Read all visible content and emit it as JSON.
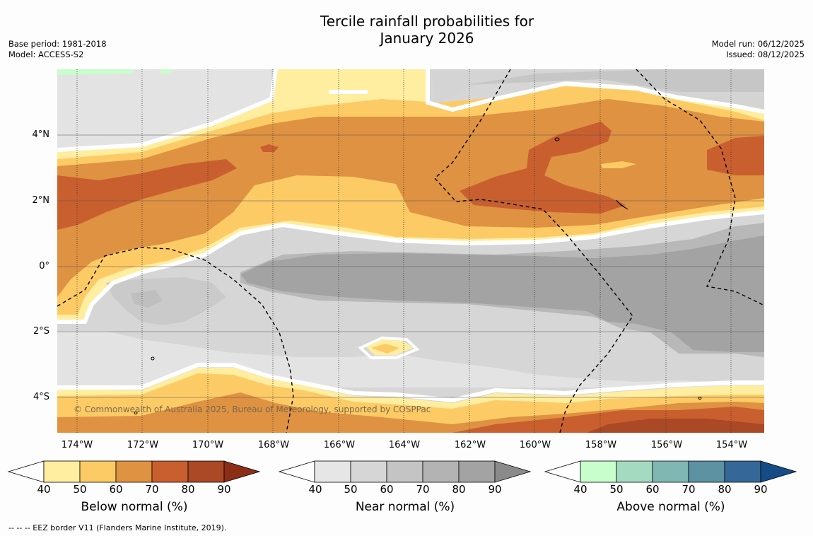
{
  "title_line1": "Tercile rainfall probabilities for",
  "title_line2": "January 2026",
  "base_period": "Base period: 1981-2018",
  "model": "Model: ACCESS-S2",
  "model_run": "Model run: 06/12/2025",
  "issued": "Issued: 08/12/2025",
  "copyright": "© Commonwealth of Australia 2025, Bureau of Meteorology, supported by COSPPac",
  "footer": "--  --  -- EEZ border V11 (Flanders Marine Institute, 2019).",
  "lat_labels": [
    "4°N",
    "2°N",
    "0°",
    "2°S",
    "4°S"
  ],
  "lon_labels": [
    "174°W",
    "172°W",
    "170°W",
    "168°W",
    "166°W",
    "164°W",
    "162°W",
    "160°W",
    "158°W",
    "156°W",
    "154°W"
  ],
  "colorbars": [
    {
      "label": "Below normal (%)",
      "ticks": [
        "40",
        "50",
        "60",
        "70",
        "80",
        "90"
      ],
      "colors": [
        "#ffffff",
        "#ffeda0",
        "#fdcb66",
        "#de9242",
        "#c95f2f",
        "#ab4825",
        "#8c2d16"
      ]
    },
    {
      "label": "Near normal (%)",
      "ticks": [
        "40",
        "50",
        "60",
        "70",
        "80",
        "90"
      ],
      "colors": [
        "#ffffff",
        "#e6e6e6",
        "#d6d6d6",
        "#c4c4c4",
        "#b3b3b3",
        "#a3a3a3",
        "#8a8a8a"
      ]
    },
    {
      "label": "Above normal (%)",
      "ticks": [
        "40",
        "50",
        "60",
        "70",
        "80",
        "90"
      ],
      "colors": [
        "#ffffff",
        "#c8fdcc",
        "#a4dbc0",
        "#80b7b3",
        "#5c92a2",
        "#356898",
        "#164c86"
      ]
    }
  ]
}
